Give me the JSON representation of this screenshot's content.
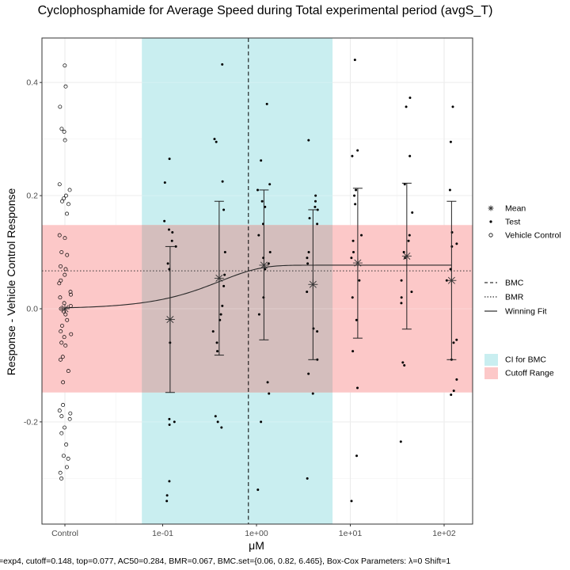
{
  "chart_data": {
    "type": "scatter",
    "title": "Cyclophosphamide for Average Speed during Total experimental period (avgS_T)",
    "xlabel": "μM",
    "ylabel": "Response - Vehicle Control Response",
    "caption": "=exp4, cutoff=0.148, top=0.077, AC50=0.284, BMR=0.067, BMC.set={0.06, 0.82, 6.465}, Box-Cox Parameters: λ=0 Shift=1",
    "x_scale": "log10",
    "x_ticks": [
      {
        "label": "Control",
        "value": null
      },
      {
        "label": "1e-01",
        "value": 0.1
      },
      {
        "label": "1e+00",
        "value": 1
      },
      {
        "label": "1e+01",
        "value": 10
      },
      {
        "label": "1e+02",
        "value": 100
      }
    ],
    "y_ticks": [
      {
        "label": "-0.2",
        "value": -0.2
      },
      {
        "label": "0.0",
        "value": 0
      },
      {
        "label": "0.2",
        "value": 0.2
      },
      {
        "label": "0.4",
        "value": 0.4
      }
    ],
    "ylim": [
      -0.38,
      0.48
    ],
    "grid": true,
    "bmr": 0.067,
    "bmc": 0.82,
    "ci_for_bmc": [
      0.06,
      6.465
    ],
    "cutoff_range": [
      -0.148,
      0.148
    ],
    "winning_fit": {
      "model": "exp4",
      "top": 0.077,
      "ac50": 0.284
    },
    "concentrations": [
      0.12,
      0.4,
      1.2,
      4,
      12,
      40,
      120
    ],
    "means": [
      {
        "x": "Control",
        "y": 0.0
      },
      {
        "x": 0.12,
        "y": -0.019
      },
      {
        "x": 0.4,
        "y": 0.054
      },
      {
        "x": 1.2,
        "y": 0.077
      },
      {
        "x": 4,
        "y": 0.043
      },
      {
        "x": 12,
        "y": 0.081
      },
      {
        "x": 40,
        "y": 0.093
      },
      {
        "x": 120,
        "y": 0.05
      }
    ],
    "error_bars": [
      {
        "x": 0.12,
        "low": -0.148,
        "high": 0.11
      },
      {
        "x": 0.4,
        "low": -0.082,
        "high": 0.19
      },
      {
        "x": 1.2,
        "low": -0.055,
        "high": 0.21
      },
      {
        "x": 4,
        "low": -0.09,
        "high": 0.175
      },
      {
        "x": 12,
        "low": -0.052,
        "high": 0.213
      },
      {
        "x": 40,
        "low": -0.036,
        "high": 0.222
      },
      {
        "x": 120,
        "low": -0.09,
        "high": 0.19
      }
    ],
    "test_points": [
      {
        "x": 0.12,
        "y": [
          0.265,
          0.223,
          0.155,
          0.14,
          0.135,
          0.12,
          0.11,
          0.08,
          0.07,
          -0.06,
          -0.195,
          -0.2,
          -0.205,
          -0.305,
          -0.33,
          -0.34
        ]
      },
      {
        "x": 0.4,
        "y": [
          0.432,
          0.3,
          0.295,
          0.225,
          0.175,
          0.1,
          0.06,
          0.04,
          0.005,
          -0.01,
          -0.02,
          -0.04,
          -0.06,
          -0.075,
          -0.19,
          -0.2,
          -0.21
        ]
      },
      {
        "x": 1.2,
        "y": [
          0.362,
          0.262,
          0.22,
          0.21,
          0.19,
          0.18,
          0.15,
          0.13,
          0.1,
          0.09,
          0.08,
          0.07,
          0.02,
          -0.01,
          -0.13,
          -0.15,
          -0.2,
          -0.32
        ]
      },
      {
        "x": 4,
        "y": [
          0.298,
          0.2,
          0.19,
          0.18,
          0.175,
          0.16,
          0.15,
          0.1,
          0.09,
          0.08,
          0.03,
          -0.035,
          -0.04,
          -0.09,
          -0.115,
          -0.15,
          -0.3
        ]
      },
      {
        "x": 12,
        "y": [
          0.44,
          0.28,
          0.27,
          0.21,
          0.2,
          0.185,
          0.13,
          0.12,
          0.1,
          0.09,
          0.05,
          0.02,
          -0.02,
          -0.075,
          -0.14,
          -0.26,
          -0.34
        ]
      },
      {
        "x": 40,
        "y": [
          0.373,
          0.357,
          0.27,
          0.22,
          0.17,
          0.13,
          0.12,
          0.1,
          0.09,
          0.05,
          0.03,
          0.02,
          0.01,
          -0.095,
          -0.1,
          -0.235
        ]
      },
      {
        "x": 120,
        "y": [
          0.357,
          0.295,
          0.21,
          0.135,
          0.115,
          0.11,
          0.07,
          0.05,
          -0.055,
          -0.06,
          -0.09,
          -0.125,
          -0.145,
          -0.152
        ]
      }
    ],
    "vehicle_control": [
      0.43,
      0.393,
      0.357,
      0.318,
      0.313,
      0.298,
      0.22,
      0.21,
      0.2,
      0.195,
      0.19,
      0.185,
      0.168,
      0.13,
      0.125,
      0.1,
      0.095,
      0.075,
      0.07,
      0.06,
      0.05,
      0.045,
      0.03,
      0.025,
      0.02,
      0.01,
      0.005,
      0.0,
      -0.005,
      -0.01,
      -0.02,
      -0.03,
      -0.04,
      -0.045,
      -0.05,
      -0.06,
      -0.065,
      -0.085,
      -0.09,
      -0.11,
      -0.13,
      -0.17,
      -0.18,
      -0.185,
      -0.19,
      -0.195,
      -0.21,
      -0.22,
      -0.24,
      -0.26,
      -0.265,
      -0.28,
      -0.29,
      -0.3
    ],
    "legend": {
      "group1": [
        {
          "label": "Mean",
          "symbol": "asterisk"
        },
        {
          "label": "Test",
          "symbol": "filled-dot"
        },
        {
          "label": "Vehicle Control",
          "symbol": "open-circle"
        }
      ],
      "group2": [
        {
          "label": "BMC",
          "symbol": "dashed-line"
        },
        {
          "label": "BMR",
          "symbol": "dotted-line"
        },
        {
          "label": "Winning Fit",
          "symbol": "solid-line"
        }
      ],
      "group3": [
        {
          "label": "CI for BMC",
          "color": "#c9eef0"
        },
        {
          "label": "Cutoff Range",
          "color": "#fcc8c8"
        }
      ]
    },
    "colors": {
      "ci_band": "#c9eef0",
      "cutoff_band": "#fcc8c8",
      "overlap": "#d4bebd",
      "points": "#000000",
      "fit_line": "#2a2a2a"
    }
  }
}
